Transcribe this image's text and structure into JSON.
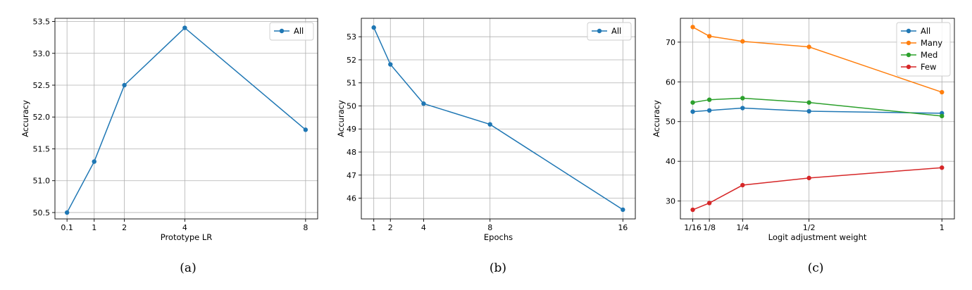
{
  "chart_data": [
    {
      "type": "line",
      "caption": "(a)",
      "xlabel": "Prototype LR",
      "ylabel": "Accuracy",
      "x": [
        0.1,
        1,
        2,
        4,
        8
      ],
      "xtick_labels": [
        "0.1",
        "1",
        "2",
        "4",
        "8"
      ],
      "xlim": [
        -0.3,
        8.4
      ],
      "ylim": [
        50.4,
        53.55
      ],
      "yticks": [
        50.5,
        51.0,
        51.5,
        52.0,
        52.5,
        53.0,
        53.5
      ],
      "ytick_labels": [
        "50.5",
        "51.0",
        "51.5",
        "52.0",
        "52.5",
        "53.0",
        "53.5"
      ],
      "grid": true,
      "legend": "top-right",
      "series": [
        {
          "name": "All",
          "color": "#1f77b4",
          "values": [
            50.5,
            51.3,
            52.5,
            53.4,
            51.8
          ]
        }
      ]
    },
    {
      "type": "line",
      "caption": "(b)",
      "xlabel": "Epochs",
      "ylabel": "Accuracy",
      "x": [
        1,
        2,
        4,
        8,
        16
      ],
      "xtick_labels": [
        "1",
        "2",
        "4",
        "8",
        "16"
      ],
      "xlim": [
        0.25,
        16.75
      ],
      "ylim": [
        45.1,
        53.8
      ],
      "yticks": [
        46,
        47,
        48,
        49,
        50,
        51,
        52,
        53
      ],
      "ytick_labels": [
        "46",
        "47",
        "48",
        "49",
        "50",
        "51",
        "52",
        "53"
      ],
      "grid": true,
      "legend": "top-right",
      "series": [
        {
          "name": "All",
          "color": "#1f77b4",
          "values": [
            53.4,
            51.8,
            50.1,
            49.2,
            45.5
          ]
        }
      ]
    },
    {
      "type": "line",
      "caption": "(c)",
      "xlabel": "Logit adjustment weight",
      "ylabel": "Accuracy",
      "x": [
        0.0625,
        0.125,
        0.25,
        0.5,
        1
      ],
      "xtick_labels": [
        "1/16",
        "1/8",
        "1/4",
        "1/2",
        "1"
      ],
      "xlim": [
        0.016,
        1.047
      ],
      "ylim": [
        25.5,
        76.0
      ],
      "yticks": [
        30,
        40,
        50,
        60,
        70
      ],
      "ytick_labels": [
        "30",
        "40",
        "50",
        "60",
        "70"
      ],
      "grid": true,
      "legend": "top-right",
      "series": [
        {
          "name": "All",
          "color": "#1f77b4",
          "values": [
            52.5,
            52.8,
            53.4,
            52.6,
            52.1
          ]
        },
        {
          "name": "Many",
          "color": "#ff7f0e",
          "values": [
            73.8,
            71.5,
            70.2,
            68.8,
            57.4
          ]
        },
        {
          "name": "Med",
          "color": "#2ca02c",
          "values": [
            54.8,
            55.5,
            55.9,
            54.8,
            51.4
          ]
        },
        {
          "name": "Few",
          "color": "#d62728",
          "values": [
            27.8,
            29.5,
            34.0,
            35.8,
            38.4
          ]
        }
      ]
    }
  ]
}
